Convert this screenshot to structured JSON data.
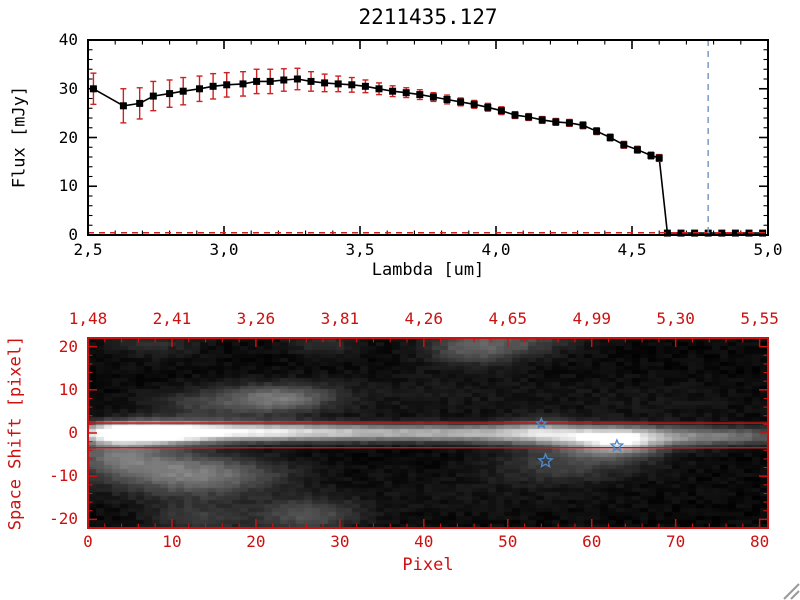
{
  "chart_data": [
    {
      "type": "line",
      "title": "2211435.127",
      "xlabel": "Lambda [um]",
      "ylabel": "Flux [mJy]",
      "xlim": [
        2.5,
        5.0
      ],
      "ylim": [
        0,
        40
      ],
      "x_ticks": [
        2.5,
        3.0,
        3.5,
        4.0,
        4.5,
        5.0
      ],
      "x_tick_labels": [
        "2,5",
        "3,0",
        "3,5",
        "4,0",
        "4,5",
        "5,0"
      ],
      "y_ticks": [
        0,
        10,
        20,
        30,
        40
      ],
      "y_tick_labels": [
        "0",
        "10",
        "20",
        "30",
        "40"
      ],
      "axis_color": "#000000",
      "line_color": "#000000",
      "marker": "filled-square",
      "errorbar_color": "#cc2222",
      "zero_line": {
        "y": 0.45,
        "color": "#cc2222",
        "style": "dashed"
      },
      "vline": {
        "x": 4.78,
        "color": "#7b9cc4",
        "style": "dashed"
      },
      "lambda": [
        2.52,
        2.63,
        2.69,
        2.74,
        2.8,
        2.85,
        2.91,
        2.96,
        3.01,
        3.07,
        3.12,
        3.17,
        3.22,
        3.27,
        3.32,
        3.37,
        3.42,
        3.47,
        3.52,
        3.57,
        3.62,
        3.67,
        3.72,
        3.77,
        3.82,
        3.87,
        3.92,
        3.97,
        4.02,
        4.07,
        4.12,
        4.17,
        4.22,
        4.27,
        4.32,
        4.37,
        4.42,
        4.47,
        4.52,
        4.57,
        4.6,
        4.63,
        4.68,
        4.73,
        4.78,
        4.83,
        4.88,
        4.93,
        4.98
      ],
      "flux": [
        30,
        26.5,
        27,
        28.5,
        29,
        29.5,
        30,
        30.5,
        30.8,
        31,
        31.5,
        31.5,
        31.8,
        32,
        31.5,
        31.2,
        31,
        30.8,
        30.5,
        30,
        29.5,
        29.2,
        28.8,
        28.3,
        27.8,
        27.3,
        26.8,
        26.2,
        25.5,
        24.6,
        24.2,
        23.6,
        23.2,
        23,
        22.5,
        21.3,
        20,
        18.5,
        17.5,
        16.3,
        15.8,
        0.4,
        0.4,
        0.4,
        0.4,
        0.4,
        0.4,
        0.4,
        0.4
      ],
      "err": [
        3.2,
        3.5,
        3.2,
        3.0,
        2.8,
        2.8,
        2.6,
        2.6,
        2.5,
        2.5,
        2.5,
        2.5,
        2.3,
        2.2,
        2.0,
        1.8,
        1.6,
        1.5,
        1.3,
        1.2,
        1.1,
        1.0,
        1.0,
        0.9,
        0.9,
        0.8,
        0.8,
        0.8,
        0.8,
        0.7,
        0.7,
        0.7,
        0.7,
        0.7,
        0.7,
        0.7,
        0.7,
        0.7,
        0.7,
        0.7,
        0.7,
        0.2,
        0.2,
        0.2,
        0.2,
        0.2,
        0.2,
        0.2,
        0.2
      ]
    },
    {
      "type": "heatmap",
      "title": "",
      "xlabel": "Pixel",
      "ylabel": "Space Shift [pixel]",
      "xlim": [
        0,
        81
      ],
      "ylim": [
        -22,
        22
      ],
      "x_ticks": [
        0,
        10,
        20,
        30,
        40,
        50,
        60,
        70,
        80
      ],
      "x_tick_labels": [
        "0",
        "10",
        "20",
        "30",
        "40",
        "50",
        "60",
        "70",
        "80"
      ],
      "y_ticks": [
        -20,
        -10,
        0,
        10,
        20
      ],
      "y_tick_labels": [
        "-20",
        "-10",
        "0",
        "10",
        "20"
      ],
      "top_axis_tick_labels": [
        "1,48",
        "2,41",
        "3,26",
        "3,81",
        "4,26",
        "4,65",
        "4,99",
        "5,30",
        "5,55"
      ],
      "axis_color": "#cc1111",
      "aperture_line_y": [
        2.3,
        -3.4
      ],
      "aperture_line_color": "#cc1111",
      "stars": [
        {
          "x": 54,
          "y": 2.2,
          "r": 5
        },
        {
          "x": 54.5,
          "y": -6.5,
          "r": 7
        },
        {
          "x": 63,
          "y": -3,
          "r": 6
        }
      ],
      "star_color": "#4d87c7",
      "image": {
        "base": 9,
        "noise": 9,
        "blobs": [
          [
            3,
            0,
            3,
            1.6,
            190
          ],
          [
            8,
            0,
            4.5,
            1.7,
            240
          ],
          [
            15,
            0.2,
            6,
            1.5,
            140
          ],
          [
            24,
            0.3,
            7,
            1.4,
            115
          ],
          [
            34,
            0,
            10,
            1.4,
            95
          ],
          [
            45,
            0,
            9,
            1.4,
            80
          ],
          [
            55,
            -0.3,
            8,
            1.5,
            70
          ],
          [
            63,
            -0.8,
            8,
            1.6,
            80
          ],
          [
            72,
            -0.8,
            7,
            1.5,
            55
          ],
          [
            79,
            -0.8,
            5,
            1.5,
            50
          ],
          [
            23,
            8,
            4.5,
            2.4,
            100
          ],
          [
            14,
            6.5,
            5,
            2.8,
            50
          ],
          [
            8,
            -8,
            6,
            3.2,
            85
          ],
          [
            17,
            -9.5,
            5.5,
            2.8,
            62
          ],
          [
            3,
            -4.5,
            4,
            2.8,
            70
          ],
          [
            12,
            -13,
            6,
            3,
            35
          ],
          [
            26,
            -19,
            4.5,
            2.8,
            72
          ],
          [
            13,
            -20,
            4,
            2.6,
            50
          ],
          [
            46,
            20,
            4,
            2.8,
            85
          ],
          [
            53,
            22,
            4,
            2.6,
            50
          ],
          [
            28,
            21,
            3,
            2,
            40
          ],
          [
            8,
            21,
            4,
            2.5,
            35
          ],
          [
            63,
            -2.2,
            3.5,
            2,
            135
          ],
          [
            60,
            -4.5,
            6,
            3.5,
            50
          ],
          [
            54,
            1,
            3,
            2,
            50
          ],
          [
            55,
            -8,
            5,
            2.8,
            30
          ],
          [
            40,
            9,
            12,
            4,
            14
          ],
          [
            68,
            7,
            9,
            4,
            10
          ],
          [
            45,
            -14,
            12,
            4,
            10
          ]
        ]
      }
    }
  ]
}
